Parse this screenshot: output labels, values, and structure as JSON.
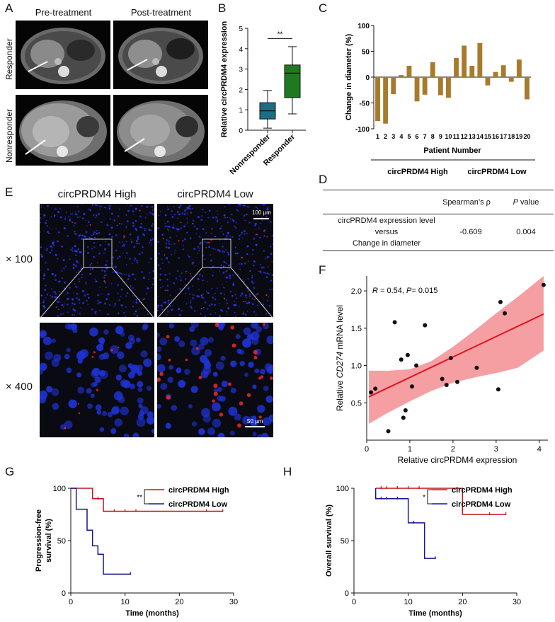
{
  "panels": {
    "A": {
      "letter": "A",
      "headers": [
        "Pre-treatment",
        "Post-treatment"
      ],
      "rows": [
        "Responder",
        "Nonresponder"
      ]
    },
    "B": {
      "letter": "B",
      "sig": "**",
      "chart_data": {
        "type": "box",
        "ylabel": "Relative circPRDM4 expression",
        "ylim": [
          0,
          5
        ],
        "yticks": [
          0,
          1,
          2,
          3,
          4,
          5
        ],
        "categories": [
          "Nonresponder",
          "Responder"
        ],
        "colors": [
          "#1b6f83",
          "#1f7a1f"
        ],
        "boxes": [
          {
            "name": "Nonresponder",
            "min": 0.1,
            "q1": 0.55,
            "median": 0.95,
            "q3": 1.35,
            "max": 1.95
          },
          {
            "name": "Responder",
            "min": 0.8,
            "q1": 1.6,
            "median": 2.8,
            "q3": 3.2,
            "max": 4.1
          }
        ]
      }
    },
    "C": {
      "letter": "C",
      "chart_data": {
        "type": "bar",
        "ylabel": "Change in diameter (%)",
        "xlabel": "Patient Number",
        "ylim": [
          -100,
          100
        ],
        "yticks": [
          -100,
          -50,
          0,
          50,
          100
        ],
        "color": "#a87b2c",
        "categories": [
          "1",
          "2",
          "3",
          "4",
          "5",
          "6",
          "7",
          "8",
          "9",
          "10",
          "11",
          "12",
          "13",
          "14",
          "15",
          "16",
          "17",
          "18",
          "19",
          "20"
        ],
        "values": [
          -85,
          -90,
          -33,
          4,
          22,
          -47,
          -34,
          29,
          -35,
          -40,
          37,
          61,
          22,
          66,
          -16,
          10,
          23,
          -9,
          34,
          -43
        ],
        "groups": [
          "circPRDM4 High",
          "circPRDM4 Low"
        ]
      }
    },
    "D": {
      "letter": "D",
      "col_spearman": "Spearman’s ρ",
      "col_p_italic": "P",
      "col_p_rest": " value",
      "row_line1": "circPRDM4 expression level",
      "row_line2": "versus",
      "row_line3": "Change in diameter",
      "rho": "-0.609",
      "pval": "0.004"
    },
    "E": {
      "letter": "E",
      "headers": [
        "circPRDM4 High",
        "circPRDM4 Low"
      ],
      "rows": [
        "× 100",
        "× 400"
      ],
      "scale_100": "100 μm",
      "scale_50": "50 μm"
    },
    "F": {
      "letter": "F",
      "annotation": {
        "r_label": "R",
        "r_value": " = 0.54, ",
        "p_label": "P",
        "p_value": "= 0.015"
      },
      "chart_data": {
        "type": "scatter",
        "xlabel": "Relative circPRDM4 expression",
        "ylabel_pre": "Relative ",
        "ylabel_gene": "CD274",
        "ylabel_post": " mRNA level",
        "xlim": [
          0,
          4.2
        ],
        "ylim": [
          0,
          2.2
        ],
        "xticks": [
          0,
          1,
          2,
          3,
          4
        ],
        "yticks": [
          0.5,
          1.0,
          1.5,
          2.0
        ],
        "ytick_labels": [
          "0.5",
          "1.0",
          "1.5",
          "2.0"
        ],
        "points": [
          [
            0.1,
            0.64
          ],
          [
            0.2,
            0.69
          ],
          [
            0.5,
            0.12
          ],
          [
            0.65,
            1.58
          ],
          [
            0.8,
            1.08
          ],
          [
            0.85,
            0.3
          ],
          [
            0.9,
            0.4
          ],
          [
            0.95,
            1.14
          ],
          [
            1.05,
            0.72
          ],
          [
            1.15,
            1.0
          ],
          [
            1.35,
            1.54
          ],
          [
            1.75,
            0.82
          ],
          [
            1.85,
            0.74
          ],
          [
            1.95,
            1.1
          ],
          [
            2.1,
            0.78
          ],
          [
            2.55,
            0.97
          ],
          [
            3.05,
            0.68
          ],
          [
            3.1,
            1.85
          ],
          [
            3.2,
            1.7
          ],
          [
            4.1,
            2.08
          ]
        ],
        "fit": {
          "x0": 0.05,
          "y0": 0.58,
          "x1": 4.1,
          "y1": 1.69
        },
        "band": {
          "x": [
            0.05,
            0.5,
            1.0,
            1.5,
            2.0,
            2.5,
            3.0,
            3.5,
            4.1
          ],
          "upper": [
            0.93,
            0.93,
            0.95,
            1.06,
            1.25,
            1.47,
            1.7,
            1.92,
            2.2
          ],
          "lower": [
            0.22,
            0.37,
            0.52,
            0.66,
            0.77,
            0.84,
            0.9,
            0.97,
            1.2
          ]
        },
        "line_color": "#e0141e",
        "band_color": "#f2878c"
      }
    },
    "G": {
      "letter": "G",
      "sig": "**",
      "chart_data": {
        "type": "line",
        "ylabel_line1": "Progression-free",
        "ylabel_line2": "survival (%)",
        "xlabel": "Time (months)",
        "xlim": [
          0,
          30
        ],
        "ylim": [
          0,
          100
        ],
        "xticks": [
          0,
          10,
          20,
          30
        ],
        "yticks": [
          0,
          50,
          100
        ],
        "series": [
          {
            "name": "circPRDM4 High",
            "color": "#c0141c",
            "steps": [
              [
                0,
                100
              ],
              [
                4,
                100
              ],
              [
                4,
                90
              ],
              [
                6,
                90
              ],
              [
                6,
                78
              ],
              [
                28,
                78
              ]
            ],
            "censors": [
              [
                5,
                90
              ],
              [
                8,
                78
              ],
              [
                10,
                78
              ],
              [
                12,
                78
              ],
              [
                25,
                78
              ],
              [
                28,
                78
              ]
            ]
          },
          {
            "name": "circPRDM4 Low",
            "color": "#16168c",
            "steps": [
              [
                0,
                100
              ],
              [
                1,
                100
              ],
              [
                1,
                80
              ],
              [
                3,
                80
              ],
              [
                3,
                60
              ],
              [
                4,
                60
              ],
              [
                4,
                45
              ],
              [
                5,
                45
              ],
              [
                5,
                37
              ],
              [
                6,
                37
              ],
              [
                6,
                18
              ],
              [
                11,
                18
              ]
            ],
            "censors": [
              [
                11,
                18
              ]
            ]
          }
        ]
      }
    },
    "H": {
      "letter": "H",
      "sig": "*",
      "chart_data": {
        "type": "line",
        "ylabel": "Overall survival (%)",
        "xlabel": "Time (months)",
        "xlim": [
          0,
          30
        ],
        "ylim": [
          0,
          100
        ],
        "xticks": [
          0,
          10,
          20,
          30
        ],
        "yticks": [
          0,
          50,
          100
        ],
        "series": [
          {
            "name": "circPRDM4 High",
            "color": "#c0141c",
            "steps": [
              [
                4,
                100
              ],
              [
                20,
                100
              ],
              [
                20,
                75
              ],
              [
                28,
                75
              ]
            ],
            "censors": [
              [
                5,
                100
              ],
              [
                6,
                100
              ],
              [
                8,
                100
              ],
              [
                10,
                100
              ],
              [
                12,
                100
              ],
              [
                25,
                75
              ],
              [
                28,
                75
              ]
            ]
          },
          {
            "name": "circPRDM4 Low",
            "color": "#16168c",
            "steps": [
              [
                4,
                100
              ],
              [
                4,
                90
              ],
              [
                10,
                90
              ],
              [
                10,
                67
              ],
              [
                13,
                67
              ],
              [
                13,
                33
              ],
              [
                15,
                33
              ]
            ],
            "censors": [
              [
                5,
                90
              ],
              [
                6,
                90
              ],
              [
                8,
                90
              ],
              [
                11,
                67
              ],
              [
                15,
                33
              ]
            ]
          }
        ]
      }
    }
  }
}
